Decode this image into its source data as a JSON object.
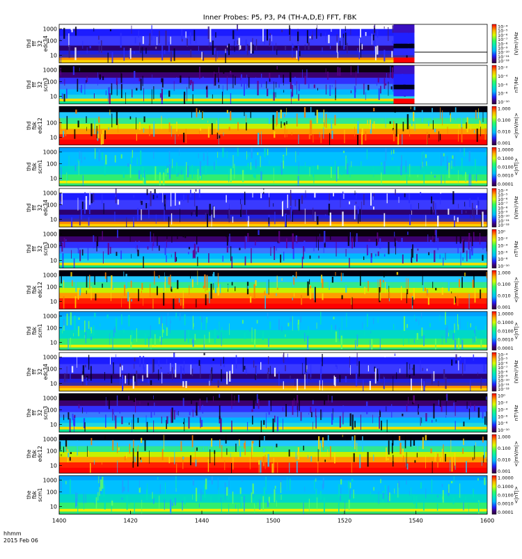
{
  "title": "Inner Probes: P5, P3, P4 (TH-A,D,E) FFT, FBK",
  "footer": {
    "line1": "hhmm",
    "line2": "2015 Feb 06"
  },
  "chart_data": {
    "type": "heatmap",
    "xlabel": "",
    "x_ticks": [
      "1400",
      "1420",
      "1440",
      "1500",
      "1520",
      "1540",
      "1600"
    ],
    "panels": [
      {
        "label": [
          "thd",
          "fff",
          "32",
          "edc34"
        ],
        "yticks": [
          "1000",
          "100",
          "10"
        ],
        "cbar_unit": "(V/m)²/Hz",
        "cbar_ticks": [
          "10⁻⁴",
          "10⁻⁵",
          "10⁻⁶",
          "10⁻⁷",
          "10⁻⁸",
          "10⁻⁹",
          "10⁻¹⁰",
          "10⁻¹¹",
          "10⁻¹²"
        ],
        "style": "ffte",
        "data_end": 0.83
      },
      {
        "label": [
          "thd",
          "fff",
          "32",
          "scm3"
        ],
        "yticks": [
          "1000",
          "100",
          "10"
        ],
        "cbar_unit": "nT²/Hz",
        "cbar_ticks": [
          "10⁻²",
          "10⁻⁴",
          "10⁻⁶",
          "10⁻⁸",
          "10⁻¹⁰"
        ],
        "style": "ffts",
        "data_end": 0.83
      },
      {
        "label": [
          "thd",
          "fbk",
          "edc12"
        ],
        "yticks": [
          "100",
          "10"
        ],
        "cbar_unit": "<|mV/m|>",
        "cbar_ticks": [
          "1.000",
          "0.100",
          "0.010",
          "0.001"
        ],
        "style": "fbke",
        "data_end": 1.0
      },
      {
        "label": [
          "thd",
          "fbk",
          "scm1"
        ],
        "yticks": [
          "1000",
          "100",
          "10"
        ],
        "cbar_unit": "<|nT|>",
        "cbar_ticks": [
          "1.0000",
          "0.1000",
          "0.0100",
          "0.0010",
          "0.0001"
        ],
        "style": "fbks",
        "data_end": 1.0
      },
      {
        "label": [
          "thd",
          "fff",
          "32",
          "edc34"
        ],
        "yticks": [
          "1000",
          "100",
          "10"
        ],
        "cbar_unit": "(V/m)²/Hz",
        "cbar_ticks": [
          "10⁻⁴",
          "10⁻⁵",
          "10⁻⁶",
          "10⁻⁷",
          "10⁻⁸",
          "10⁻⁹",
          "10⁻¹⁰",
          "10⁻¹¹",
          "10⁻¹²"
        ],
        "style": "ffte",
        "data_end": 1.0
      },
      {
        "label": [
          "thd",
          "fff",
          "32",
          "scm3"
        ],
        "yticks": [
          "1000",
          "100",
          "10"
        ],
        "cbar_unit": "nT²/Hz",
        "cbar_ticks": [
          "10⁰",
          "10⁻²",
          "10⁻⁴",
          "10⁻⁶",
          "10⁻⁸",
          "10⁻¹⁰"
        ],
        "style": "ffts",
        "data_end": 1.0
      },
      {
        "label": [
          "thd",
          "fbk",
          "edc12"
        ],
        "yticks": [
          "1000",
          "100",
          "10"
        ],
        "cbar_unit": "<|mV/m|>",
        "cbar_ticks": [
          "1.000",
          "0.100",
          "0.010",
          "0.001"
        ],
        "style": "fbke",
        "data_end": 1.0
      },
      {
        "label": [
          "thd",
          "fbk",
          "scm1"
        ],
        "yticks": [
          "1000",
          "100",
          "10"
        ],
        "cbar_unit": "<|nT|>",
        "cbar_ticks": [
          "1.0000",
          "0.1000",
          "0.0100",
          "0.0010",
          "0.0001"
        ],
        "style": "fbks",
        "data_end": 1.0
      },
      {
        "label": [
          "the",
          "fff",
          "32",
          "edc34"
        ],
        "yticks": [
          "1000",
          "100",
          "10"
        ],
        "cbar_unit": "(V/m)²/Hz",
        "cbar_ticks": [
          "10⁻⁴",
          "10⁻⁵",
          "10⁻⁶",
          "10⁻⁷",
          "10⁻⁸",
          "10⁻⁹",
          "10⁻¹⁰",
          "10⁻¹¹",
          "10⁻¹²"
        ],
        "style": "ffte",
        "data_end": 1.0
      },
      {
        "label": [
          "the",
          "fff",
          "32",
          "scm3"
        ],
        "yticks": [
          "1000",
          "100",
          "10"
        ],
        "cbar_unit": "nT²/Hz",
        "cbar_ticks": [
          "10⁰",
          "10⁻²",
          "10⁻⁴",
          "10⁻⁶",
          "10⁻⁸",
          "10⁻¹⁰"
        ],
        "style": "ffts",
        "data_end": 1.0
      },
      {
        "label": [
          "the",
          "fbk",
          "edc12"
        ],
        "yticks": [
          "1000",
          "100",
          "10"
        ],
        "cbar_unit": "<|mV/m|>",
        "cbar_ticks": [
          "1.000",
          "0.100",
          "0.010",
          "0.001"
        ],
        "style": "fbke",
        "data_end": 1.0
      },
      {
        "label": [
          "the",
          "fbk",
          "scm1"
        ],
        "yticks": [
          "1000",
          "100",
          "10"
        ],
        "cbar_unit": "<|nT|>",
        "cbar_ticks": [
          "1.0000",
          "0.1000",
          "0.0100",
          "0.0010",
          "0.0001"
        ],
        "style": "fbks",
        "data_end": 1.0
      }
    ]
  }
}
